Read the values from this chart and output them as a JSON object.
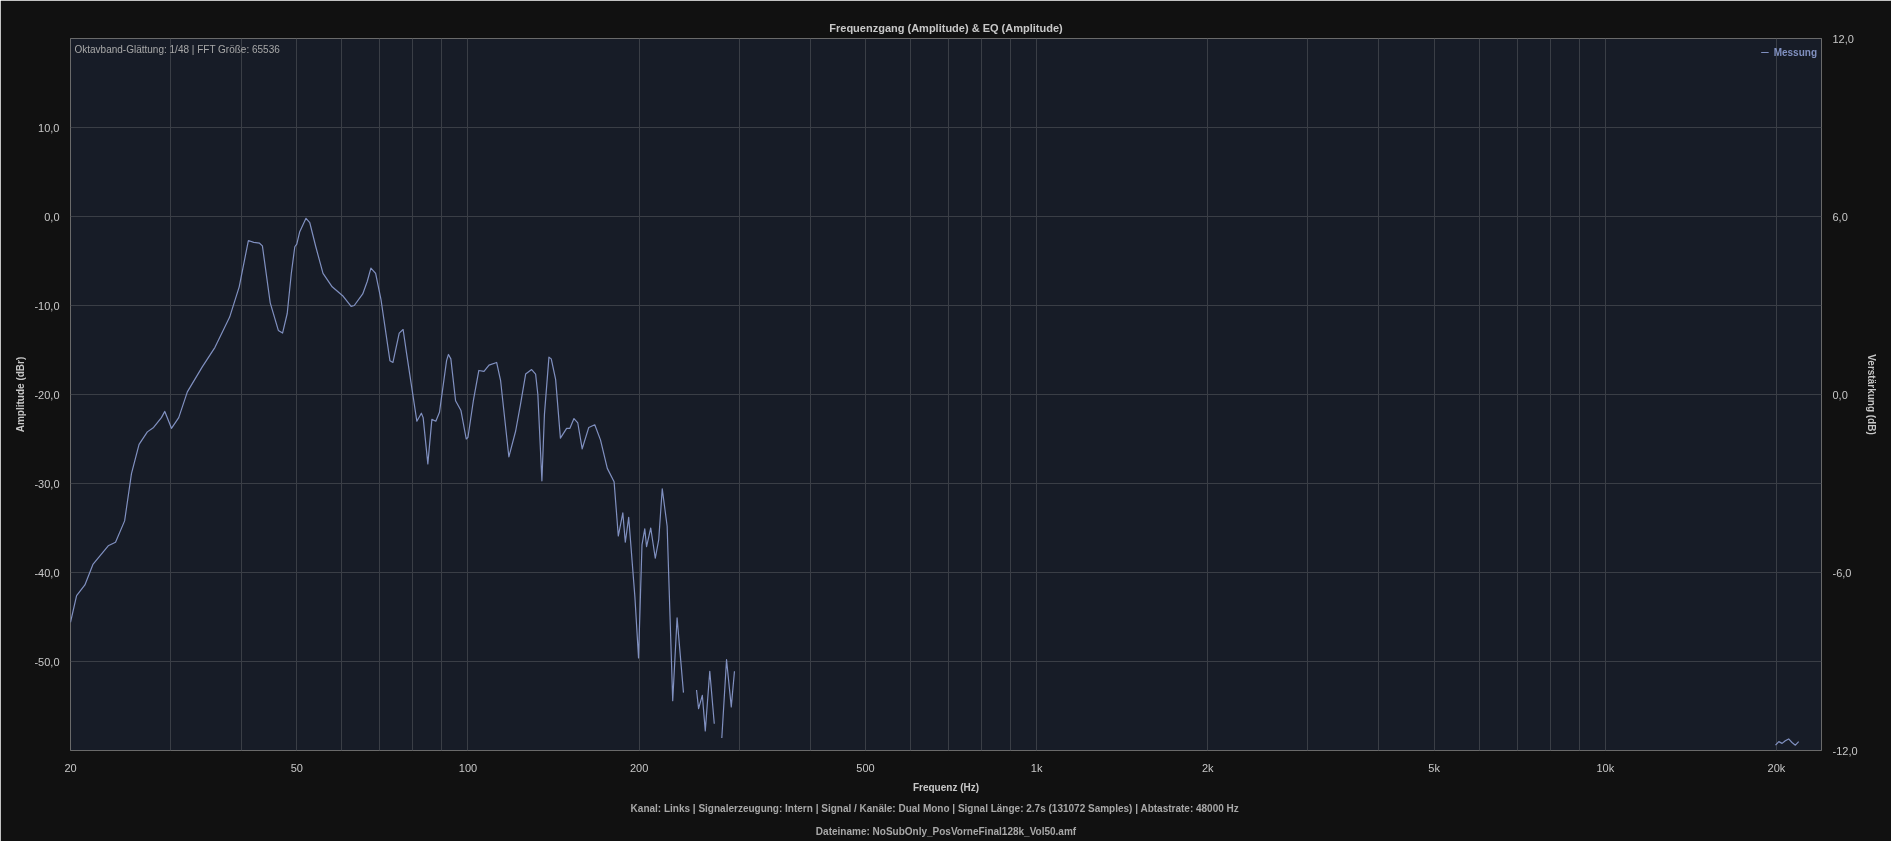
{
  "chart_data": {
    "type": "line",
    "title": "Frequenzgang (Amplitude) & EQ (Amplitude)",
    "xlabel": "Frequenz (Hz)",
    "ylabel": "Amplitude (dBr)",
    "y2label": "Verstärkung (dB)",
    "annotations": [
      "Oktavband-Glättung: 1/48 | FFT Größe: 65536",
      "Kanal: Links  |  Signalerzeugung: Intern  |  Signal / Kanäle: Dual Mono  |  Signal Länge: 2.7s (131072 Samples)  |  Abtastrate: 48000 Hz",
      "Dateiname: NoSubOnly_PosVorneFinal128k_Vol50.amf"
    ],
    "xlim": [
      20,
      24000
    ],
    "ylim": [
      -60,
      20
    ],
    "y2lim": [
      -12,
      12
    ],
    "xticks": [
      20,
      {
        "value": 30,
        "label": null
      },
      {
        "value": 40,
        "label": null
      },
      50,
      {
        "value": 60,
        "label": null
      },
      {
        "value": 70,
        "label": null
      },
      {
        "value": 80,
        "label": null
      },
      {
        "value": 90,
        "label": null
      },
      100,
      200,
      {
        "value": 300,
        "label": null
      },
      {
        "value": 400,
        "label": null
      },
      500,
      {
        "value": 600,
        "label": null
      },
      {
        "value": 700,
        "label": null
      },
      {
        "value": 800,
        "label": null
      },
      {
        "value": 900,
        "label": null
      },
      {
        "value": 1000,
        "label": "1k"
      },
      {
        "value": 2000,
        "label": "2k"
      },
      {
        "value": 3000,
        "label": null
      },
      {
        "value": 4000,
        "label": null
      },
      {
        "value": 5000,
        "label": "5k"
      },
      {
        "value": 6000,
        "label": null
      },
      {
        "value": 7000,
        "label": null
      },
      {
        "value": 8000,
        "label": null
      },
      {
        "value": 9000,
        "label": null
      },
      {
        "value": 10000,
        "label": "10k"
      },
      {
        "value": 20000,
        "label": "20k"
      }
    ],
    "yticks": [
      {
        "value": -50,
        "label": "-50,0"
      },
      {
        "value": -40,
        "label": "-40,0"
      },
      {
        "value": -30,
        "label": "-30,0"
      },
      {
        "value": -20,
        "label": "-20,0"
      },
      {
        "value": -10,
        "label": "-10,0"
      },
      {
        "value": 0,
        "label": "0,0"
      },
      {
        "value": 10,
        "label": "10,0"
      }
    ],
    "y2ticks": [
      {
        "value": -12,
        "label": "-12,0"
      },
      {
        "value": -6,
        "label": "-6,0"
      },
      {
        "value": 0,
        "label": "0,0"
      },
      {
        "value": 6,
        "label": "6,0"
      },
      {
        "value": 12,
        "label": "12,0"
      }
    ],
    "grid": true,
    "log": "x",
    "legend": "top right",
    "marker": "none",
    "line_style": "solid",
    "series": [
      {
        "name": "Messung",
        "color": "#8090c0",
        "x": [
          20,
          20.5,
          21.2,
          21.9,
          23.3,
          24.0,
          24.9,
          25.6,
          26.4,
          27.3,
          28.0,
          28.9,
          29.3,
          30.1,
          31.0,
          32.1,
          34.1,
          35.9,
          38.1,
          39.6,
          41.1,
          42.0,
          43.0,
          43.5,
          44.9,
          46.4,
          47.2,
          48.1,
          48.9,
          49.6,
          50.0,
          50.6,
          51.9,
          52.7,
          54.0,
          55.6,
          57.7,
          60.2,
          62.3,
          63.1,
          65.3,
          66.5,
          67.5,
          68.8,
          70.3,
          72.9,
          73.8,
          75.7,
          76.9,
          78.0,
          81.3,
          82.8,
          83.4,
          85.0,
          86.4,
          87.8,
          89.1,
          91.7,
          92.4,
          93.3,
          95.1,
          97.2,
          99.3,
          100,
          102.2,
          104.5,
          106.7,
          108.9,
          112.3,
          114.1,
          118.0,
          121.3,
          123.7,
          126.3,
          129.4,
          131.5,
          132.7,
          134.9,
          136.3,
          138.8,
          140.1,
          142.6,
          145.4,
          149.1,
          151.1,
          153.6,
          156.0,
          158.8,
          163.1,
          167.1,
          171.0,
          175.8,
          180.7,
          183.8,
          187.2,
          189.1,
          191.7,
          196.6,
          199.5,
          202.3,
          204.6,
          206.1,
          209.6,
          213.5,
          216.5,
          219.6,
          224.0,
          229.1,
          233.2,
          239.3,
          244.2,
          248.0,
          252.3,
          254.4,
          258.3,
          261.4,
          266.2,
          271.1,
          276.1,
          279.5,
          284.9,
          290.4,
          294.2,
          1000,
          19920,
          20190,
          20460,
          20730,
          21010,
          21300,
          21590,
          21880
        ],
        "values": [
          -45.6,
          -42.6,
          -41.4,
          -39.1,
          -37.0,
          -36.6,
          -34.2,
          -28.9,
          -25.6,
          -24.2,
          -23.7,
          -22.6,
          -21.9,
          -23.8,
          -22.6,
          -19.7,
          -16.9,
          -14.7,
          -11.3,
          -7.9,
          -2.7,
          -2.9,
          -3.0,
          -3.3,
          -9.7,
          -12.8,
          -13.1,
          -10.9,
          -6.4,
          -3.4,
          -3.1,
          -1.7,
          -0.2,
          -0.7,
          -3.4,
          -6.4,
          -7.9,
          -8.9,
          -10.1,
          -10.0,
          -8.7,
          -7.3,
          -5.8,
          -6.4,
          -9.3,
          -16.2,
          -16.4,
          -13.1,
          -12.7,
          -15.4,
          -23.0,
          -22.1,
          -22.6,
          -27.8,
          -22.8,
          -23.0,
          -22.0,
          -16.2,
          -15.5,
          -16.0,
          -20.7,
          -21.8,
          -25.0,
          -24.8,
          -20.7,
          -17.3,
          -17.4,
          -16.7,
          -16.4,
          -18.4,
          -27.0,
          -24.1,
          -21.1,
          -17.7,
          -17.2,
          -17.7,
          -20.0,
          -29.7,
          -22.2,
          -15.8,
          -16.0,
          -18.3,
          -24.9,
          -23.8,
          -23.8,
          -22.7,
          -23.2,
          -26.1,
          -23.7,
          -23.4,
          -25.1,
          -28.3,
          -29.8,
          -35.9,
          -33.3,
          -36.6,
          -33.8,
          -42.8,
          -49.6,
          -36.9,
          -35.1,
          -37.1,
          -35.0,
          -38.4,
          -36.3,
          -30.6,
          -34.8,
          -54.4,
          -45.1,
          -53.5,
          null,
          null,
          -53.2,
          -55.3,
          -53.8,
          -57.8,
          -51.1,
          -57.0,
          null,
          -58.6,
          -49.8,
          -55.1,
          -51.1,
          null,
          -59.4,
          -59.0,
          -59.2,
          -58.9,
          -58.7,
          -59.1,
          -59.4,
          -59.0
        ]
      }
    ]
  }
}
